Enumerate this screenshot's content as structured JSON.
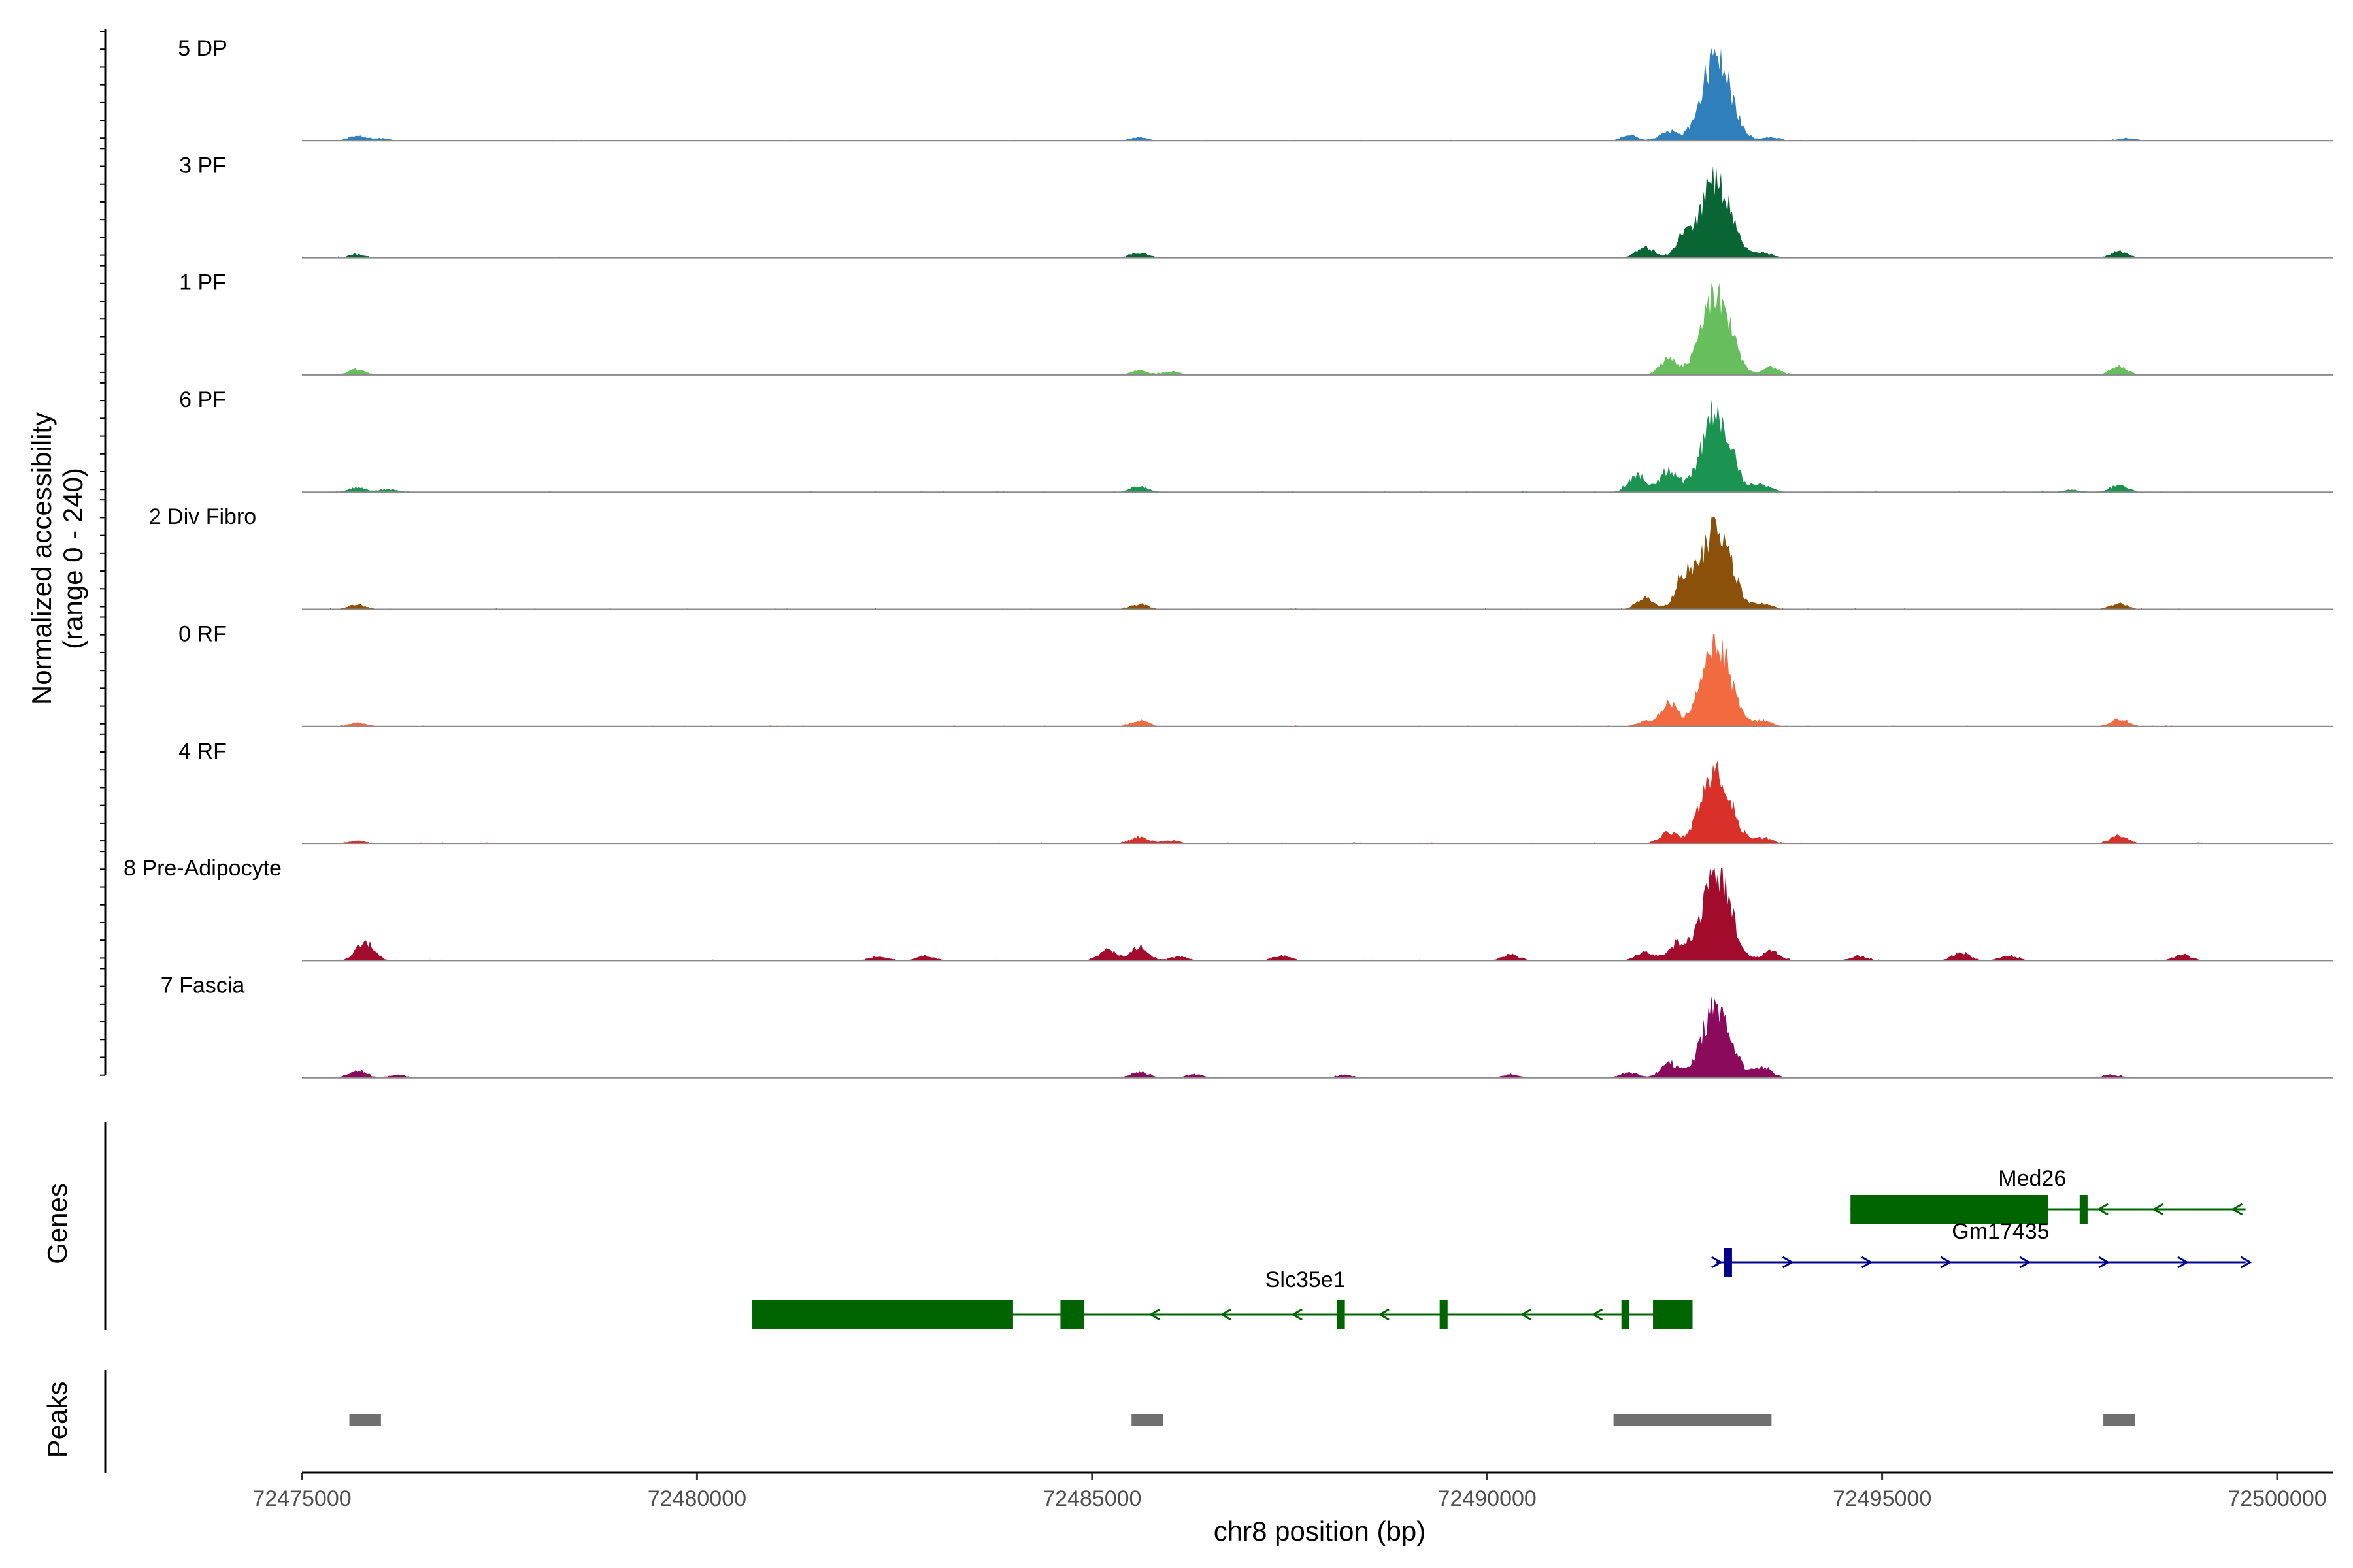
{
  "chart_data": {
    "type": "area",
    "title": "",
    "ylabel_line1": "Normalized accessibility",
    "ylabel_line2": "(range 0 - 240)",
    "yrange": [
      0,
      240
    ],
    "xlabel": "chr8 position (bp)",
    "xlim": [
      72475000,
      72500000
    ],
    "xticks": [
      72475000,
      72480000,
      72485000,
      72490000,
      72495000,
      72500000
    ],
    "x_tick_labels": [
      "72475000",
      "72480000",
      "72485000",
      "72490000",
      "72495000",
      "72500000"
    ],
    "coverage_region": [
      72475000,
      72499600
    ],
    "tracks": [
      {
        "name": "5 DP",
        "color": "#2f7fbd",
        "peaks": [
          [
            72475700,
            12
          ],
          [
            72476000,
            6
          ],
          [
            72485600,
            9
          ],
          [
            72491800,
            14
          ],
          [
            72492300,
            25
          ],
          [
            72492900,
            230
          ],
          [
            72493600,
            10
          ],
          [
            72498100,
            7
          ]
        ]
      },
      {
        "name": "3 PF",
        "color": "#0a6534",
        "peaks": [
          [
            72475700,
            9
          ],
          [
            72485600,
            14
          ],
          [
            72492000,
            28
          ],
          [
            72492500,
            55
          ],
          [
            72492900,
            215
          ],
          [
            72493500,
            14
          ],
          [
            72498000,
            16
          ]
        ]
      },
      {
        "name": "1 PF",
        "color": "#66be5d",
        "peaks": [
          [
            72475700,
            14
          ],
          [
            72485600,
            12
          ],
          [
            72486000,
            9
          ],
          [
            72492300,
            42
          ],
          [
            72492900,
            230
          ],
          [
            72493600,
            20
          ],
          [
            72498000,
            22
          ]
        ]
      },
      {
        "name": "6 PF",
        "color": "#1a9450",
        "peaks": [
          [
            72475700,
            12
          ],
          [
            72476100,
            7
          ],
          [
            72485600,
            15
          ],
          [
            72491900,
            45
          ],
          [
            72492300,
            60
          ],
          [
            72492900,
            215
          ],
          [
            72493500,
            18
          ],
          [
            72497400,
            6
          ],
          [
            72498000,
            18
          ]
        ]
      },
      {
        "name": "2 Div Fibro",
        "color": "#8b510a",
        "peaks": [
          [
            72475700,
            12
          ],
          [
            72485600,
            14
          ],
          [
            72492000,
            30
          ],
          [
            72492500,
            90
          ],
          [
            72492900,
            230
          ],
          [
            72493500,
            14
          ],
          [
            72498000,
            16
          ]
        ]
      },
      {
        "name": "0 RF",
        "color": "#f16a40",
        "peaks": [
          [
            72475700,
            10
          ],
          [
            72485600,
            16
          ],
          [
            72492000,
            12
          ],
          [
            72492300,
            58
          ],
          [
            72492900,
            218
          ],
          [
            72493500,
            15
          ],
          [
            72498000,
            20
          ]
        ]
      },
      {
        "name": "4 RF",
        "color": "#d9312a",
        "peaks": [
          [
            72475700,
            7
          ],
          [
            72485600,
            18
          ],
          [
            72486000,
            8
          ],
          [
            72492300,
            30
          ],
          [
            72492900,
            205
          ],
          [
            72493500,
            14
          ],
          [
            72498000,
            20
          ]
        ]
      },
      {
        "name": "8 Pre-Adipocyte",
        "color": "#a30b2c",
        "peaks": [
          [
            72475800,
            52
          ],
          [
            72482300,
            12
          ],
          [
            72482900,
            14
          ],
          [
            72485200,
            30
          ],
          [
            72485600,
            40
          ],
          [
            72486100,
            12
          ],
          [
            72487400,
            14
          ],
          [
            72490300,
            16
          ],
          [
            72492000,
            25
          ],
          [
            72492400,
            42
          ],
          [
            72492900,
            240
          ],
          [
            72493600,
            25
          ],
          [
            72494700,
            12
          ],
          [
            72496000,
            22
          ],
          [
            72496600,
            14
          ],
          [
            72498800,
            16
          ]
        ]
      },
      {
        "name": "7 Fascia",
        "color": "#8c0a5b",
        "peaks": [
          [
            72475700,
            20
          ],
          [
            72476200,
            8
          ],
          [
            72485600,
            16
          ],
          [
            72486300,
            9
          ],
          [
            72488200,
            8
          ],
          [
            72490300,
            9
          ],
          [
            72491800,
            14
          ],
          [
            72492300,
            40
          ],
          [
            72492900,
            190
          ],
          [
            72493500,
            28
          ],
          [
            72497900,
            8
          ]
        ]
      }
    ],
    "genes_title": "Genes",
    "genes": [
      {
        "name": "Slc35e1",
        "strand": "-",
        "start": 72480700,
        "end": 72492600,
        "color": "#006400",
        "exons": [
          [
            72480700,
            72484000
          ],
          [
            72484600,
            72484900
          ],
          [
            72488100,
            72488200
          ],
          [
            72489400,
            72489500
          ],
          [
            72491700,
            72491800
          ],
          [
            72492100,
            72492600
          ]
        ],
        "arrows": [
          72485800,
          72486700,
          72487600,
          72488700,
          72490500,
          72491400
        ]
      },
      {
        "name": "Med26",
        "strand": "-",
        "start": 72494600,
        "end": 72499600,
        "color": "#006400",
        "exons": [
          [
            72494600,
            72497100
          ],
          [
            72497500,
            72497600
          ]
        ],
        "arrows": [
          72497800,
          72498500,
          72499500
        ]
      },
      {
        "name": "Gm17435",
        "strand": "+",
        "start": 72492900,
        "end": 72499600,
        "color": "#00008b",
        "exons": [
          [
            72493000,
            72493100
          ]
        ],
        "arrows": [
          72492900,
          72493800,
          72494800,
          72495800,
          72496800,
          72497800,
          72498800,
          72499600
        ]
      }
    ],
    "peaks_title": "Peaks",
    "peak_regions": [
      [
        72475600,
        72476000
      ],
      [
        72485500,
        72485900
      ],
      [
        72491600,
        72493600
      ],
      [
        72497800,
        72498200
      ]
    ],
    "peak_color": "#707070"
  }
}
